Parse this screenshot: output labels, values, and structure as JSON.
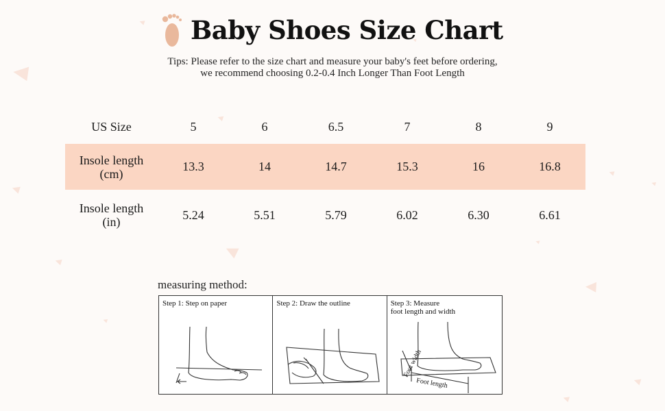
{
  "header": {
    "title": "Baby Shoes Size Chart",
    "tips_line1": "Tips: Please refer to the size chart and measure your baby's feet before ordering,",
    "tips_line2": "we recommend choosing 0.2-0.4 Inch Longer Than Foot Length"
  },
  "colors": {
    "accent_row": "#fbd6c3",
    "foot_icon": "#e9b89c",
    "stars": "#f7dcd2"
  },
  "table": {
    "us_size_label": "US Size",
    "sizes": [
      "5",
      "6",
      "6.5",
      "7",
      "8",
      "9"
    ],
    "cm_label_line1": "Insole length",
    "cm_label_line2": "(cm)",
    "cm_values": [
      "13.3",
      "14",
      "14.7",
      "15.3",
      "16",
      "16.8"
    ],
    "in_label_line1": "Insole length",
    "in_label_line2": "(in)",
    "in_values": [
      "5.24",
      "5.51",
      "5.79",
      "6.02",
      "6.30",
      "6.61"
    ]
  },
  "method": {
    "label": "measuring method:",
    "step1": "Step 1: Step on paper",
    "step2": "Step 2: Draw the outline",
    "step3_line1": "Step 3: Measure",
    "step3_line2": "foot length and width",
    "foot_width_label": "Foot width",
    "foot_length_label": "Foot length"
  }
}
